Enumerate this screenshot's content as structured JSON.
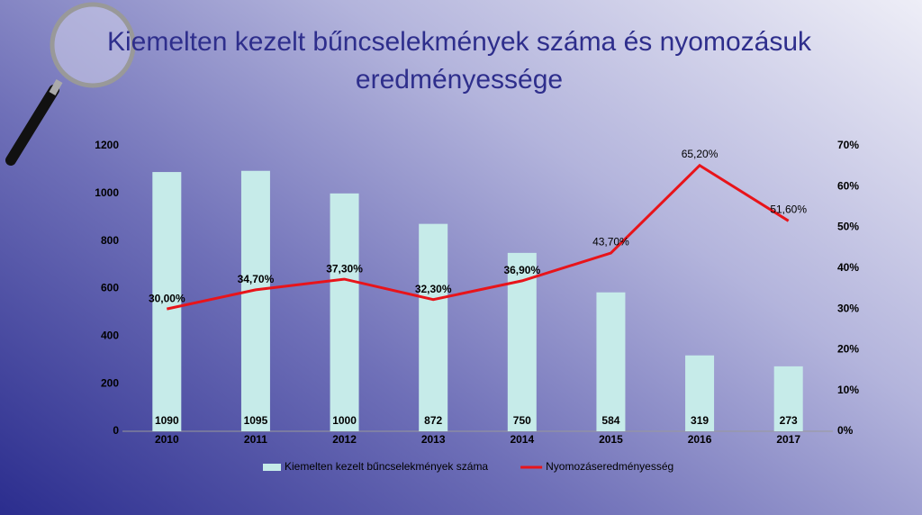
{
  "chart_data": {
    "type": "combo",
    "title": "Kiemelten kezelt bűncselekmények száma és nyomozásuk eredményessége",
    "categories": [
      "2010",
      "2011",
      "2012",
      "2013",
      "2014",
      "2015",
      "2016",
      "2017"
    ],
    "series": [
      {
        "name": "Kiemelten kezelt bűncselekmények száma",
        "type": "bar",
        "color": "#c6ebe9",
        "values": [
          1090,
          1095,
          1000,
          872,
          750,
          584,
          319,
          273
        ]
      },
      {
        "name": "Nyomozáseredményesség",
        "type": "line",
        "axis": "y2",
        "color": "#e8141a",
        "values": [
          30.0,
          34.7,
          37.3,
          32.3,
          36.9,
          43.7,
          65.2,
          51.6
        ],
        "value_labels": [
          "30,00%",
          "34,70%",
          "37,30%",
          "32,30%",
          "36,90%",
          "43,70%",
          "65,20%",
          "51,60%"
        ]
      }
    ],
    "ylim": [
      0,
      1200
    ],
    "yticks": [
      0,
      200,
      400,
      600,
      800,
      1000,
      1200
    ],
    "y2lim": [
      0,
      70
    ],
    "y2ticks": [
      {
        "value": 0,
        "label": "0%"
      },
      {
        "value": 10,
        "label": "10%"
      },
      {
        "value": 20,
        "label": "20%"
      },
      {
        "value": 30,
        "label": "30%"
      },
      {
        "value": 40,
        "label": "40%"
      },
      {
        "value": 50,
        "label": "50%"
      },
      {
        "value": 60,
        "label": "60%"
      },
      {
        "value": 70,
        "label": "70%"
      }
    ],
    "legend": "bottom"
  }
}
